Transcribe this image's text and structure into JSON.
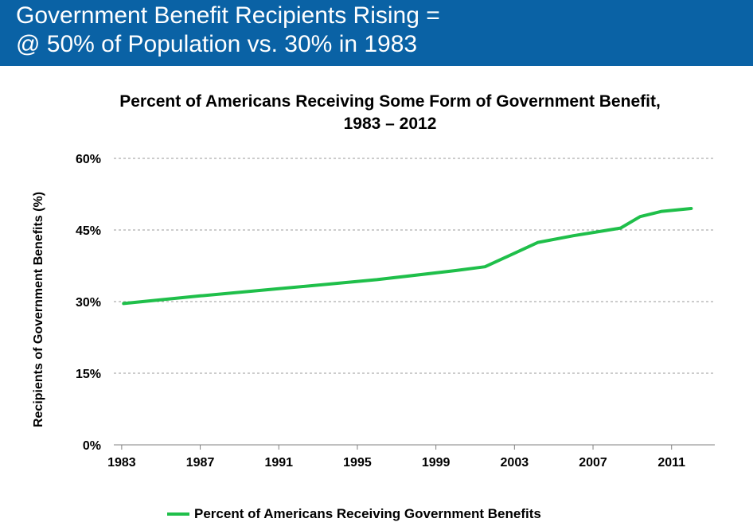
{
  "header": {
    "line1": "Government Benefit Recipients Rising =",
    "line2": "@ 50% of Population vs. 30% in 1983",
    "background_color": "#0a62a5"
  },
  "chart_data": {
    "type": "line",
    "title_line1": "Percent of Americans Receiving Some Form of Government Benefit,",
    "title_line2": "1983 – 2012",
    "xlabel": "",
    "ylabel": "Recipients of Government Benefits (%)",
    "xlim": [
      1982.6,
      2013.2
    ],
    "ylim": [
      0,
      60
    ],
    "x_ticks": [
      1983,
      1987,
      1991,
      1995,
      1999,
      2003,
      2007,
      2011
    ],
    "y_ticks": [
      0,
      15,
      30,
      45,
      60
    ],
    "y_tick_labels": [
      "0%",
      "15%",
      "30%",
      "45%",
      "60%"
    ],
    "grid": true,
    "legend_position": "bottom",
    "series": [
      {
        "name": "Percent of Americans Receiving Government Benefits",
        "color": "#1fbf4a",
        "x": [
          1983.1,
          1987,
          1991,
          1996,
          2000,
          2001.5,
          2004.2,
          2006,
          2008.4,
          2009.4,
          2010.5,
          2012
        ],
        "values": [
          29.6,
          31.2,
          32.7,
          34.6,
          36.5,
          37.3,
          42.4,
          43.8,
          45.4,
          47.8,
          48.9,
          49.5
        ]
      }
    ]
  }
}
